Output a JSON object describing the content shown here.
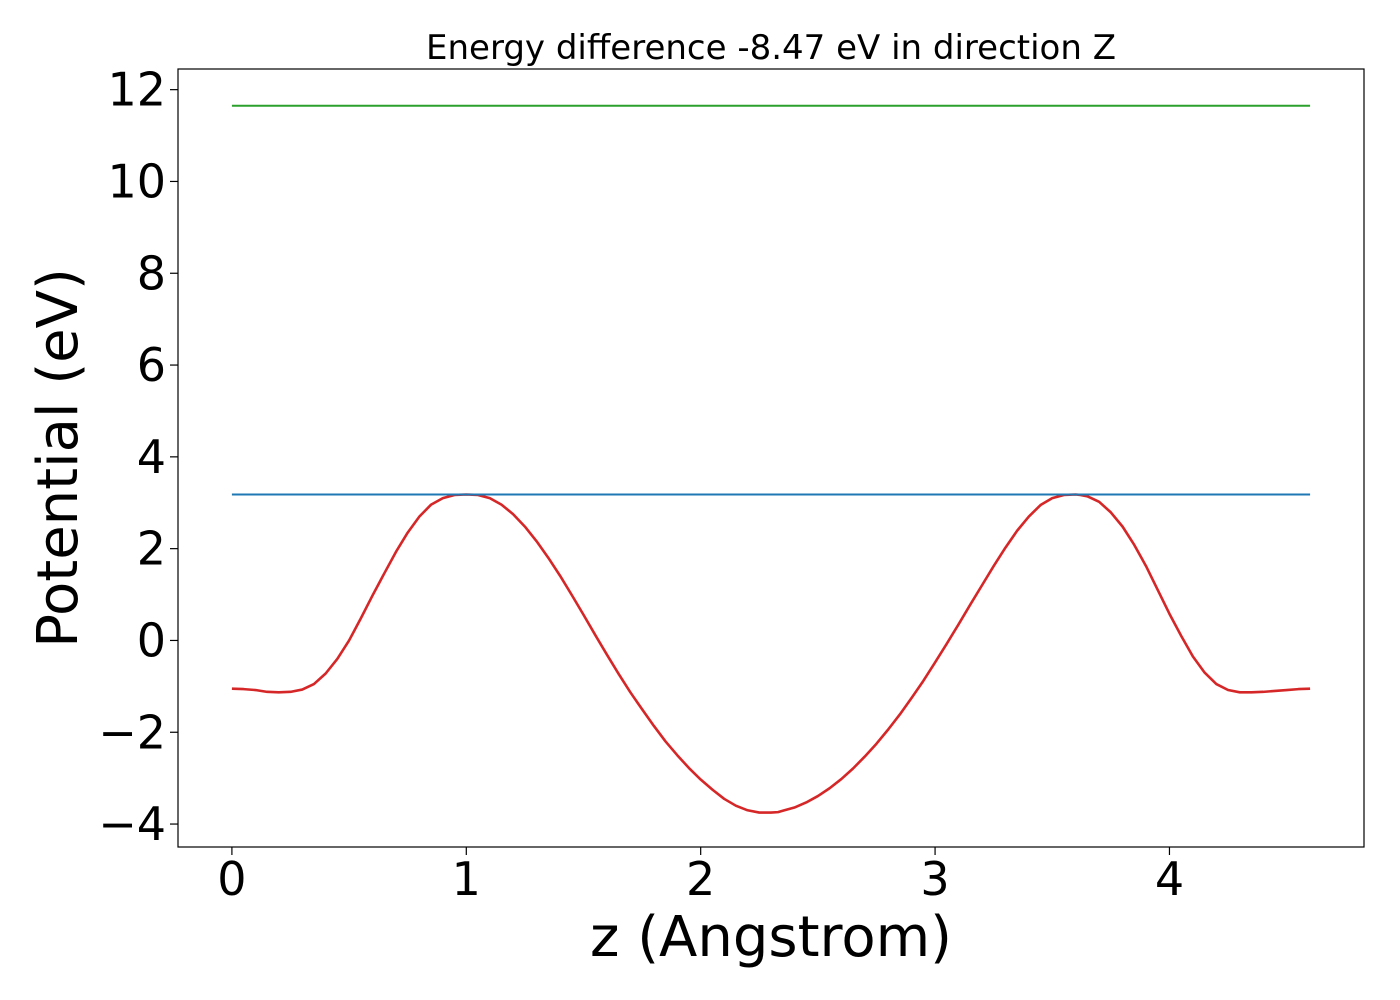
{
  "chart_data": {
    "type": "line",
    "title": "Energy difference -8.47 eV in direction Z",
    "xlabel": "z (Angstrom)",
    "ylabel": "Potential (eV)",
    "xlim": [
      -0.23,
      4.83
    ],
    "ylim": [
      -4.5,
      12.45
    ],
    "xticks": [
      0,
      1,
      2,
      3,
      4
    ],
    "xtick_labels": [
      "0",
      "1",
      "2",
      "3",
      "4"
    ],
    "yticks": [
      -4,
      -2,
      0,
      2,
      4,
      6,
      8,
      10,
      12
    ],
    "ytick_labels": [
      "−4",
      "−2",
      "0",
      "2",
      "4",
      "6",
      "8",
      "10",
      "12"
    ],
    "grid": false,
    "series": [
      {
        "color": "#d62728",
        "x": [
          0.0,
          0.05,
          0.1,
          0.15,
          0.2,
          0.25,
          0.3,
          0.35,
          0.4,
          0.45,
          0.5,
          0.55,
          0.6,
          0.65,
          0.7,
          0.75,
          0.8,
          0.85,
          0.9,
          0.95,
          1.0,
          1.05,
          1.1,
          1.15,
          1.2,
          1.25,
          1.3,
          1.35,
          1.4,
          1.45,
          1.5,
          1.55,
          1.6,
          1.65,
          1.7,
          1.75,
          1.8,
          1.85,
          1.9,
          1.95,
          2.0,
          2.05,
          2.1,
          2.15,
          2.2,
          2.25,
          2.3,
          2.33,
          2.35,
          2.4,
          2.45,
          2.5,
          2.55,
          2.6,
          2.65,
          2.7,
          2.75,
          2.8,
          2.85,
          2.9,
          2.95,
          3.0,
          3.05,
          3.1,
          3.15,
          3.2,
          3.25,
          3.3,
          3.35,
          3.4,
          3.45,
          3.5,
          3.55,
          3.6,
          3.62,
          3.65,
          3.7,
          3.75,
          3.8,
          3.85,
          3.9,
          3.95,
          4.0,
          4.05,
          4.1,
          4.15,
          4.2,
          4.25,
          4.3,
          4.35,
          4.4,
          4.45,
          4.5,
          4.55,
          4.6
        ],
        "y": [
          -1.05,
          -1.06,
          -1.08,
          -1.12,
          -1.13,
          -1.12,
          -1.07,
          -0.95,
          -0.72,
          -0.4,
          0.0,
          0.48,
          0.98,
          1.46,
          1.93,
          2.35,
          2.7,
          2.96,
          3.1,
          3.17,
          3.18,
          3.17,
          3.1,
          2.96,
          2.75,
          2.48,
          2.16,
          1.8,
          1.41,
          0.99,
          0.56,
          0.12,
          -0.31,
          -0.73,
          -1.13,
          -1.5,
          -1.86,
          -2.2,
          -2.5,
          -2.78,
          -3.03,
          -3.25,
          -3.45,
          -3.6,
          -3.7,
          -3.75,
          -3.75,
          -3.74,
          -3.71,
          -3.64,
          -3.53,
          -3.39,
          -3.22,
          -3.02,
          -2.79,
          -2.53,
          -2.25,
          -1.94,
          -1.61,
          -1.25,
          -0.88,
          -0.48,
          -0.07,
          0.35,
          0.78,
          1.2,
          1.62,
          2.02,
          2.39,
          2.7,
          2.95,
          3.1,
          3.17,
          3.18,
          3.17,
          3.14,
          3.02,
          2.79,
          2.48,
          2.08,
          1.62,
          1.1,
          0.58,
          0.1,
          -0.35,
          -0.7,
          -0.95,
          -1.08,
          -1.13,
          -1.13,
          -1.12,
          -1.1,
          -1.08,
          -1.06,
          -1.05
        ]
      },
      {
        "color": "#1f77b4",
        "x": [
          0.0,
          4.6
        ],
        "y": [
          3.18,
          3.18
        ]
      },
      {
        "color": "#2ca02c",
        "x": [
          0.0,
          4.6
        ],
        "y": [
          11.65,
          11.65
        ]
      }
    ]
  }
}
